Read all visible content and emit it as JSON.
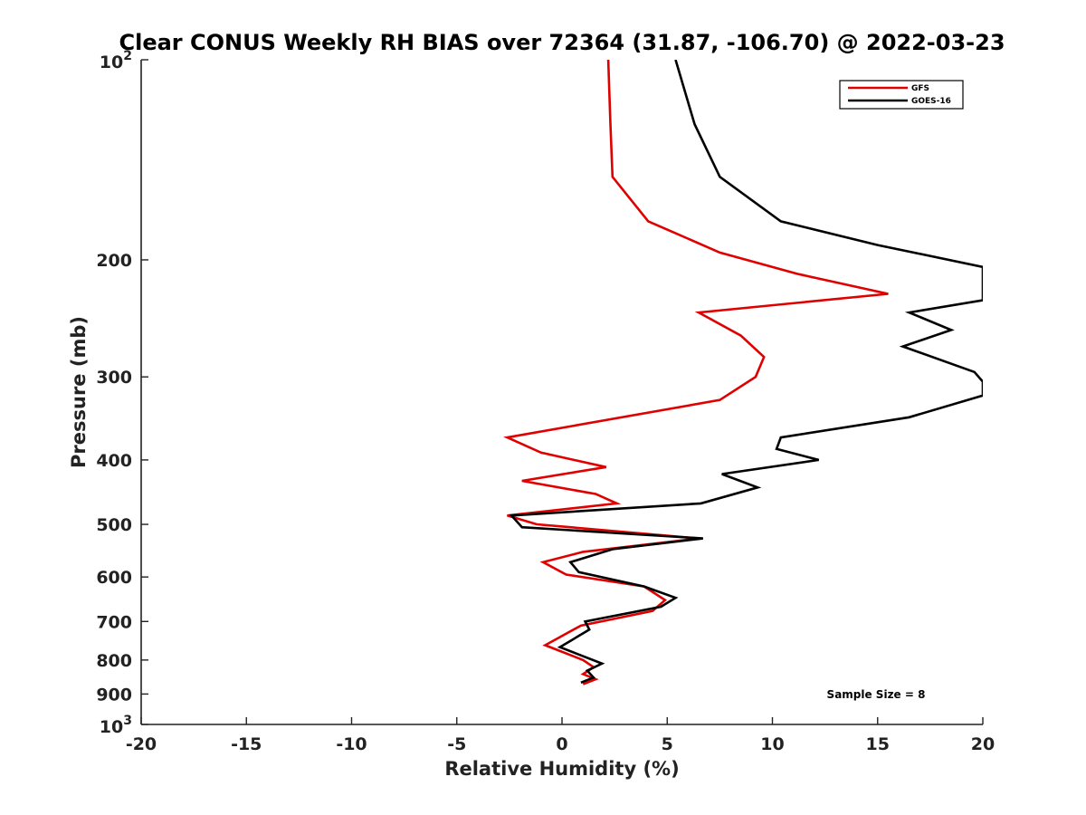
{
  "chart_data": {
    "type": "line",
    "title": "Clear CONUS Weekly RH BIAS over 72364 (31.87, -106.70) @ 2022-03-23",
    "xlabel": "Relative Humidity (%)",
    "ylabel": "Pressure (mb)",
    "xlim": [
      -20,
      20
    ],
    "ylim": [
      100,
      1000
    ],
    "y_scale": "log",
    "y_reversed": true,
    "grid": false,
    "legend_position": "top-right",
    "x_ticks": [
      -20,
      -15,
      -10,
      -5,
      0,
      5,
      10,
      15,
      20
    ],
    "x_tick_labels": [
      "-20",
      "-15",
      "-10",
      "-5",
      "0",
      "5",
      "10",
      "15",
      "20"
    ],
    "y_ticks": [
      200,
      300,
      400,
      500,
      600,
      700,
      800,
      900
    ],
    "y_tick_labels": [
      "200",
      "300",
      "400",
      "500",
      "600",
      "700",
      "800",
      "900"
    ],
    "y_endpoint_labels": [
      {
        "value": 100,
        "base": "10",
        "exp": "2"
      },
      {
        "value": 1000,
        "base": "10",
        "exp": "3"
      }
    ],
    "series": [
      {
        "name": "GFS",
        "color": "#e00000",
        "points": [
          [
            2.2,
            100
          ],
          [
            2.3,
            125
          ],
          [
            2.4,
            150
          ],
          [
            4.1,
            175
          ],
          [
            7.5,
            195
          ],
          [
            11.2,
            210
          ],
          [
            15.5,
            225
          ],
          [
            6.5,
            240
          ],
          [
            8.5,
            260
          ],
          [
            9.6,
            280
          ],
          [
            9.2,
            300
          ],
          [
            7.5,
            325
          ],
          [
            -2.6,
            370
          ],
          [
            -1.0,
            390
          ],
          [
            2.1,
            410
          ],
          [
            -1.9,
            430
          ],
          [
            1.6,
            450
          ],
          [
            2.6,
            465
          ],
          [
            -2.6,
            485
          ],
          [
            -1.2,
            500
          ],
          [
            6.5,
            525
          ],
          [
            1.0,
            550
          ],
          [
            -0.9,
            570
          ],
          [
            0.2,
            595
          ],
          [
            3.9,
            620
          ],
          [
            4.9,
            650
          ],
          [
            4.3,
            675
          ],
          [
            0.9,
            710
          ],
          [
            -0.8,
            760
          ],
          [
            1.0,
            800
          ],
          [
            1.5,
            820
          ],
          [
            1.0,
            840
          ],
          [
            1.6,
            855
          ],
          [
            1.0,
            870
          ]
        ]
      },
      {
        "name": "GOES-16",
        "color": "#000000",
        "points": [
          [
            5.4,
            100
          ],
          [
            6.3,
            125
          ],
          [
            7.5,
            150
          ],
          [
            10.4,
            175
          ],
          [
            15.0,
            190
          ],
          [
            20.0,
            205
          ],
          [
            20.0,
            230
          ],
          [
            16.5,
            240
          ],
          [
            18.5,
            255
          ],
          [
            16.2,
            270
          ],
          [
            19.6,
            295
          ],
          [
            20.0,
            305
          ],
          [
            20.0,
            320
          ],
          [
            16.5,
            345
          ],
          [
            10.4,
            370
          ],
          [
            10.2,
            385
          ],
          [
            12.2,
            400
          ],
          [
            7.6,
            420
          ],
          [
            9.3,
            440
          ],
          [
            6.6,
            465
          ],
          [
            -2.4,
            485
          ],
          [
            -1.9,
            505
          ],
          [
            6.7,
            525
          ],
          [
            2.4,
            545
          ],
          [
            0.4,
            570
          ],
          [
            0.8,
            590
          ],
          [
            3.9,
            620
          ],
          [
            5.4,
            645
          ],
          [
            4.7,
            665
          ],
          [
            1.1,
            700
          ],
          [
            1.3,
            720
          ],
          [
            -0.1,
            765
          ],
          [
            1.9,
            810
          ],
          [
            1.2,
            830
          ],
          [
            1.5,
            850
          ],
          [
            0.9,
            865
          ]
        ]
      }
    ],
    "annotations": [
      "Sample Size = 8"
    ]
  }
}
